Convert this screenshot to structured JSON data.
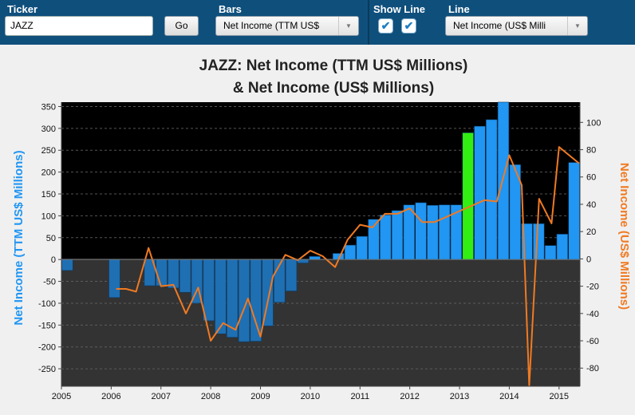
{
  "toolbar": {
    "ticker_label": "Ticker",
    "ticker_value": "JAZZ",
    "go_label": "Go",
    "bars_label": "Bars",
    "bars_value": "Net Income (TTM US$",
    "showline_label": "Show Line",
    "line_label": "Line",
    "line_value": "Net Income (US$ Milli",
    "check_glyph": "✔",
    "arrow_glyph": "▼"
  },
  "colors": {
    "toolbar": "#0f4f7c",
    "bar": "#2196f3",
    "bar_negative": "#1f6fb3",
    "bar_highlight": "#33ee11",
    "line": "#f07a22",
    "plot_upper": "#000000",
    "plot_lower": "#333333"
  },
  "chart_data": {
    "type": "bar",
    "title_line1": "JAZZ: Net Income (TTM US$ Millions)",
    "title_line2": "& Net Income (US$ Millions)",
    "ylabel_left": "Net Income (TTM US$ Millions)",
    "ylabel_right": "Net Income (US$ Millions)",
    "x_ticks": [
      "2005",
      "2006",
      "2007",
      "2008",
      "2009",
      "2010",
      "2011",
      "2012",
      "2013",
      "2014",
      "2015"
    ],
    "left_axis": {
      "min": -290,
      "max": 360,
      "ticks": [
        350,
        300,
        250,
        200,
        150,
        100,
        50,
        0,
        -50,
        -100,
        -150,
        -200,
        -250
      ]
    },
    "right_axis": {
      "min": -93.3,
      "max": 114.8,
      "ticks": [
        100,
        80,
        60,
        40,
        20,
        0,
        -20,
        -40,
        -60,
        -80
      ]
    },
    "x_range": [
      2005,
      2015.42
    ],
    "highlight_index": 34,
    "grid": true,
    "bars": [
      {
        "x": 2005.0,
        "v": -25
      },
      {
        "x": 2005.25,
        "v": 0
      },
      {
        "x": 2005.5,
        "v": 0
      },
      {
        "x": 2005.75,
        "v": 0
      },
      {
        "x": 2006.0,
        "v": -87
      },
      {
        "x": 2006.25,
        "v": 0
      },
      {
        "x": 2006.5,
        "v": 0
      },
      {
        "x": 2006.75,
        "v": -60
      },
      {
        "x": 2007.0,
        "v": -60
      },
      {
        "x": 2007.25,
        "v": -65
      },
      {
        "x": 2007.5,
        "v": -75
      },
      {
        "x": 2007.75,
        "v": -100
      },
      {
        "x": 2008.0,
        "v": -140
      },
      {
        "x": 2008.25,
        "v": -170
      },
      {
        "x": 2008.5,
        "v": -178
      },
      {
        "x": 2008.75,
        "v": -188
      },
      {
        "x": 2009.0,
        "v": -187
      },
      {
        "x": 2009.25,
        "v": -152
      },
      {
        "x": 2009.5,
        "v": -98
      },
      {
        "x": 2009.75,
        "v": -72
      },
      {
        "x": 2010.0,
        "v": -8
      },
      {
        "x": 2010.25,
        "v": 7
      },
      {
        "x": 2010.5,
        "v": 0
      },
      {
        "x": 2010.75,
        "v": 14
      },
      {
        "x": 2011.0,
        "v": 33
      },
      {
        "x": 2011.25,
        "v": 53
      },
      {
        "x": 2011.5,
        "v": 92
      },
      {
        "x": 2011.75,
        "v": 102
      },
      {
        "x": 2012.0,
        "v": 112
      },
      {
        "x": 2012.25,
        "v": 125
      },
      {
        "x": 2012.5,
        "v": 130
      },
      {
        "x": 2012.75,
        "v": 124
      },
      {
        "x": 2013.0,
        "v": 125
      },
      {
        "x": 2013.25,
        "v": 125
      },
      {
        "x": 2013.5,
        "v": 290
      },
      {
        "x": 2013.75,
        "v": 305
      },
      {
        "x": 2014.0,
        "v": 320
      },
      {
        "x": 2014.25,
        "v": 360
      },
      {
        "x": 2014.5,
        "v": 217
      },
      {
        "x": 2014.75,
        "v": 82
      },
      {
        "x": 2015.0,
        "v": 82
      },
      {
        "x": 2015.25,
        "v": 32
      },
      {
        "x": 2015.5,
        "v": 58
      },
      {
        "x": 2015.75,
        "v": 222
      }
    ],
    "line": [
      {
        "x": 2006.1,
        "v": -22
      },
      {
        "x": 2006.3,
        "v": -22
      },
      {
        "x": 2006.5,
        "v": -24
      },
      {
        "x": 2006.75,
        "v": 8
      },
      {
        "x": 2007.0,
        "v": -20
      },
      {
        "x": 2007.25,
        "v": -19
      },
      {
        "x": 2007.5,
        "v": -40
      },
      {
        "x": 2007.75,
        "v": -21
      },
      {
        "x": 2008.0,
        "v": -60
      },
      {
        "x": 2008.25,
        "v": -47
      },
      {
        "x": 2008.5,
        "v": -52
      },
      {
        "x": 2008.75,
        "v": -29
      },
      {
        "x": 2009.0,
        "v": -57
      },
      {
        "x": 2009.25,
        "v": -13
      },
      {
        "x": 2009.5,
        "v": 3
      },
      {
        "x": 2009.75,
        "v": -1
      },
      {
        "x": 2010.0,
        "v": 6
      },
      {
        "x": 2010.25,
        "v": 2
      },
      {
        "x": 2010.5,
        "v": -6
      },
      {
        "x": 2010.75,
        "v": 14
      },
      {
        "x": 2011.0,
        "v": 25
      },
      {
        "x": 2011.25,
        "v": 23
      },
      {
        "x": 2011.5,
        "v": 33
      },
      {
        "x": 2011.75,
        "v": 33
      },
      {
        "x": 2012.0,
        "v": 37
      },
      {
        "x": 2012.25,
        "v": 27
      },
      {
        "x": 2012.5,
        "v": 27
      },
      {
        "x": 2012.75,
        "v": 31
      },
      {
        "x": 2013.0,
        "v": 35
      },
      {
        "x": 2013.25,
        "v": 39
      },
      {
        "x": 2013.5,
        "v": 43
      },
      {
        "x": 2013.75,
        "v": 42
      },
      {
        "x": 2014.0,
        "v": 76
      },
      {
        "x": 2014.25,
        "v": 54
      },
      {
        "x": 2014.4,
        "v": -93
      },
      {
        "x": 2014.6,
        "v": 44
      },
      {
        "x": 2014.85,
        "v": 26
      },
      {
        "x": 2015.0,
        "v": 82
      },
      {
        "x": 2015.4,
        "v": 70
      }
    ]
  }
}
